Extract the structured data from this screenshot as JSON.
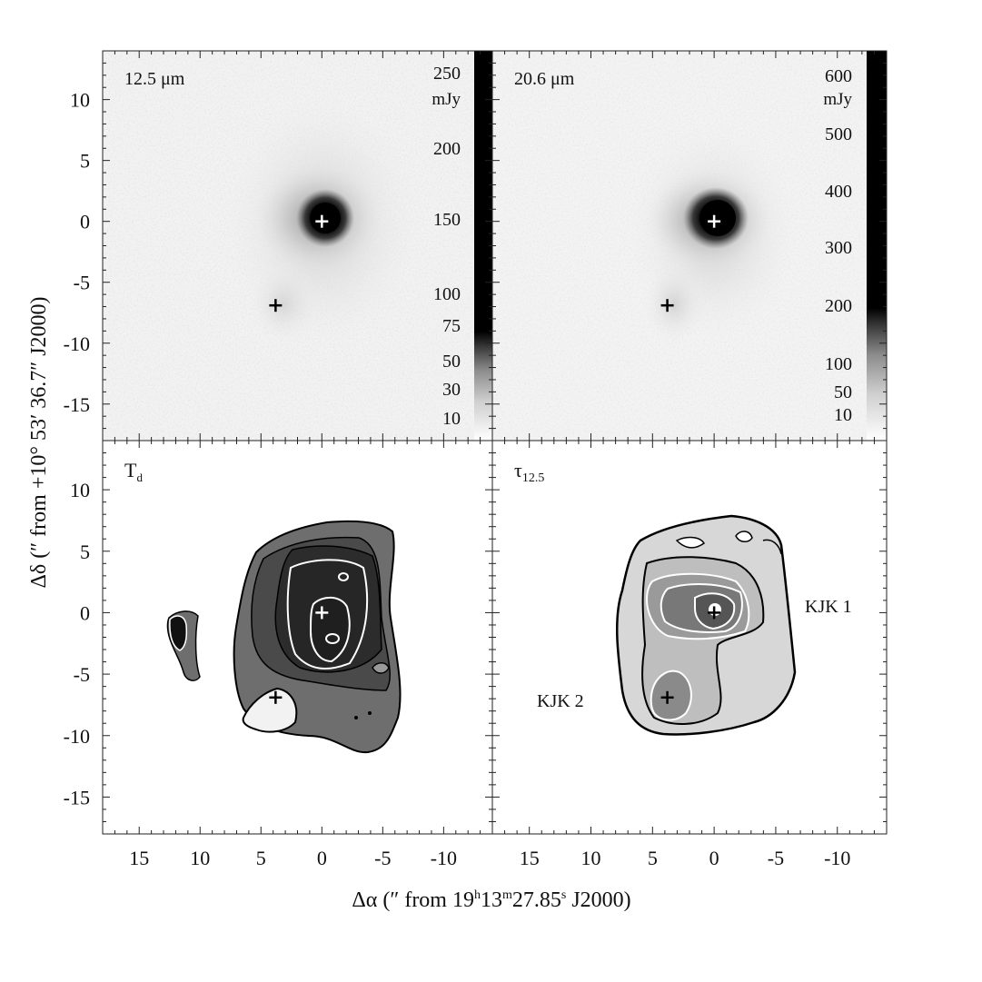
{
  "figure": {
    "ylabel": "Δδ (″ from +10° 53′ 36.7″ J2000)",
    "xlabel": "Δα (″  from  19h13m27.85s J2000)",
    "xlabel_parts": {
      "pre": "Δα (″  from  19",
      "h": "h",
      "mid1": "13",
      "m": "m",
      "mid2": "27.85",
      "s": "s",
      "post": " J2000)"
    }
  },
  "chart_data": [
    {
      "type": "heatmap",
      "panel": "top-left",
      "label": "12.5 μm",
      "colorbar": {
        "unit": "mJy",
        "ticks": [
          "250",
          "200",
          "150",
          "100",
          "75",
          "50",
          "30",
          "10"
        ]
      },
      "xlim": [
        18,
        -14
      ],
      "ylim": [
        -18,
        14
      ],
      "markers": [
        {
          "x": 0,
          "y": 0,
          "color": "white"
        },
        {
          "x": 3.8,
          "y": -6.9,
          "color": "black"
        }
      ]
    },
    {
      "type": "heatmap",
      "panel": "top-right",
      "label": "20.6 μm",
      "colorbar": {
        "unit": "mJy",
        "ticks": [
          "600",
          "500",
          "400",
          "300",
          "200",
          "100",
          "50",
          "10"
        ]
      },
      "xlim": [
        18,
        -14
      ],
      "ylim": [
        -18,
        14
      ],
      "markers": [
        {
          "x": 0,
          "y": 0,
          "color": "white"
        },
        {
          "x": 3.8,
          "y": -6.9,
          "color": "black"
        }
      ]
    },
    {
      "type": "heatmap",
      "panel": "bottom-left",
      "label": "Td",
      "label_parts": {
        "main": "T",
        "sub": "d"
      },
      "xlim": [
        18,
        -14
      ],
      "ylim": [
        -18,
        14
      ],
      "markers": [
        {
          "x": 0,
          "y": 0,
          "color": "white"
        },
        {
          "x": 3.8,
          "y": -6.9,
          "color": "black"
        }
      ]
    },
    {
      "type": "heatmap",
      "panel": "bottom-right",
      "label": "τ12.5",
      "label_parts": {
        "main": "τ",
        "sub": "12.5"
      },
      "annotations": [
        {
          "text": "KJK 1",
          "x": -9,
          "y": 0
        },
        {
          "text": "KJK 2",
          "x": 11,
          "y": -7.2
        }
      ],
      "xlim": [
        18,
        -14
      ],
      "ylim": [
        -18,
        14
      ],
      "markers": [
        {
          "x": 0,
          "y": 0,
          "color": "black"
        },
        {
          "x": 3.8,
          "y": -6.9,
          "color": "black"
        }
      ]
    }
  ],
  "axes": {
    "x_ticks": [
      "15",
      "10",
      "5",
      "0",
      "-5",
      "-10"
    ],
    "x_tick_values": [
      15,
      10,
      5,
      0,
      -5,
      -10
    ],
    "y_ticks": [
      "10",
      "5",
      "0",
      "-5",
      "-10",
      "-15"
    ],
    "y_tick_values": [
      10,
      5,
      0,
      -5,
      -10,
      -15
    ]
  }
}
